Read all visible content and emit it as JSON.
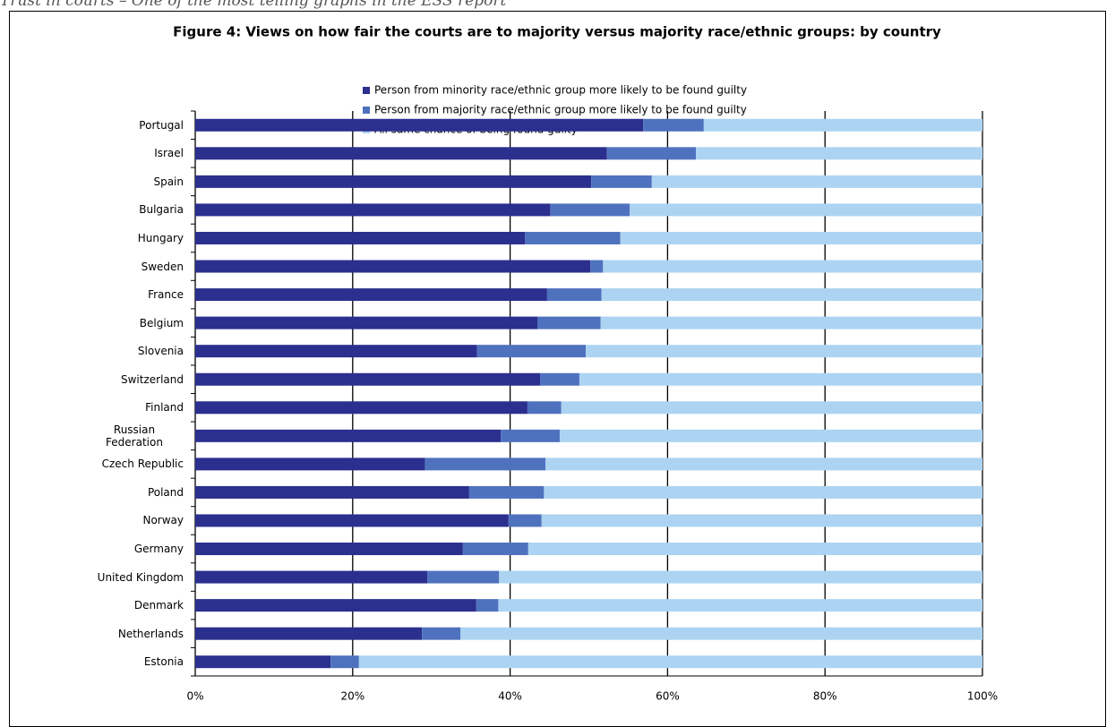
{
  "caption": "Trust in courts – One of the most telling graphs in the ESS report",
  "chart_data": {
    "type": "stacked-bar-horizontal",
    "title": "Figure 4: Views on how fair the courts are to majority versus majority race/ethnic groups: by country",
    "categories": [
      "Portugal",
      "Israel",
      "Spain",
      "Bulgaria",
      "Hungary",
      "Sweden",
      "France",
      "Belgium",
      "Slovenia",
      "Switzerland",
      "Finland",
      "Russian Federation",
      "Czech Republic",
      "Poland",
      "Norway",
      "Germany",
      "United Kingdom",
      "Denmark",
      "Netherlands",
      "Estonia"
    ],
    "series": [
      {
        "name": "Person from minority race/ethnic group more likely to be found guilty",
        "color": "#2b2f8e",
        "values": [
          56.9,
          52.3,
          50.3,
          45.1,
          41.9,
          50.2,
          44.7,
          43.5,
          35.8,
          43.8,
          42.2,
          38.8,
          29.2,
          34.8,
          39.8,
          34.0,
          29.5,
          35.7,
          28.8,
          17.2
        ]
      },
      {
        "name": "Person from majority race/ethnic group more likely to be found guilty",
        "color": "#4f72bf",
        "values": [
          7.7,
          11.3,
          7.7,
          10.1,
          12.1,
          1.6,
          6.9,
          8.0,
          13.8,
          5.0,
          4.3,
          7.5,
          15.3,
          9.5,
          4.2,
          8.3,
          9.1,
          2.8,
          4.9,
          3.6
        ]
      },
      {
        "name": "All same chance of being found guilty",
        "color": "#acd4f2",
        "values": [
          35.4,
          36.4,
          42.0,
          44.8,
          46.0,
          48.2,
          48.4,
          48.5,
          50.4,
          51.2,
          53.5,
          53.7,
          55.5,
          55.7,
          56.0,
          57.7,
          61.4,
          61.5,
          66.3,
          79.2
        ]
      }
    ],
    "xlim": [
      0,
      100
    ],
    "xticks": [
      {
        "value": 0,
        "label": "0%"
      },
      {
        "value": 20,
        "label": "20%"
      },
      {
        "value": 40,
        "label": "40%"
      },
      {
        "value": 60,
        "label": "60%"
      },
      {
        "value": 80,
        "label": "80%"
      },
      {
        "value": 100,
        "label": "100%"
      }
    ],
    "grid": true
  }
}
